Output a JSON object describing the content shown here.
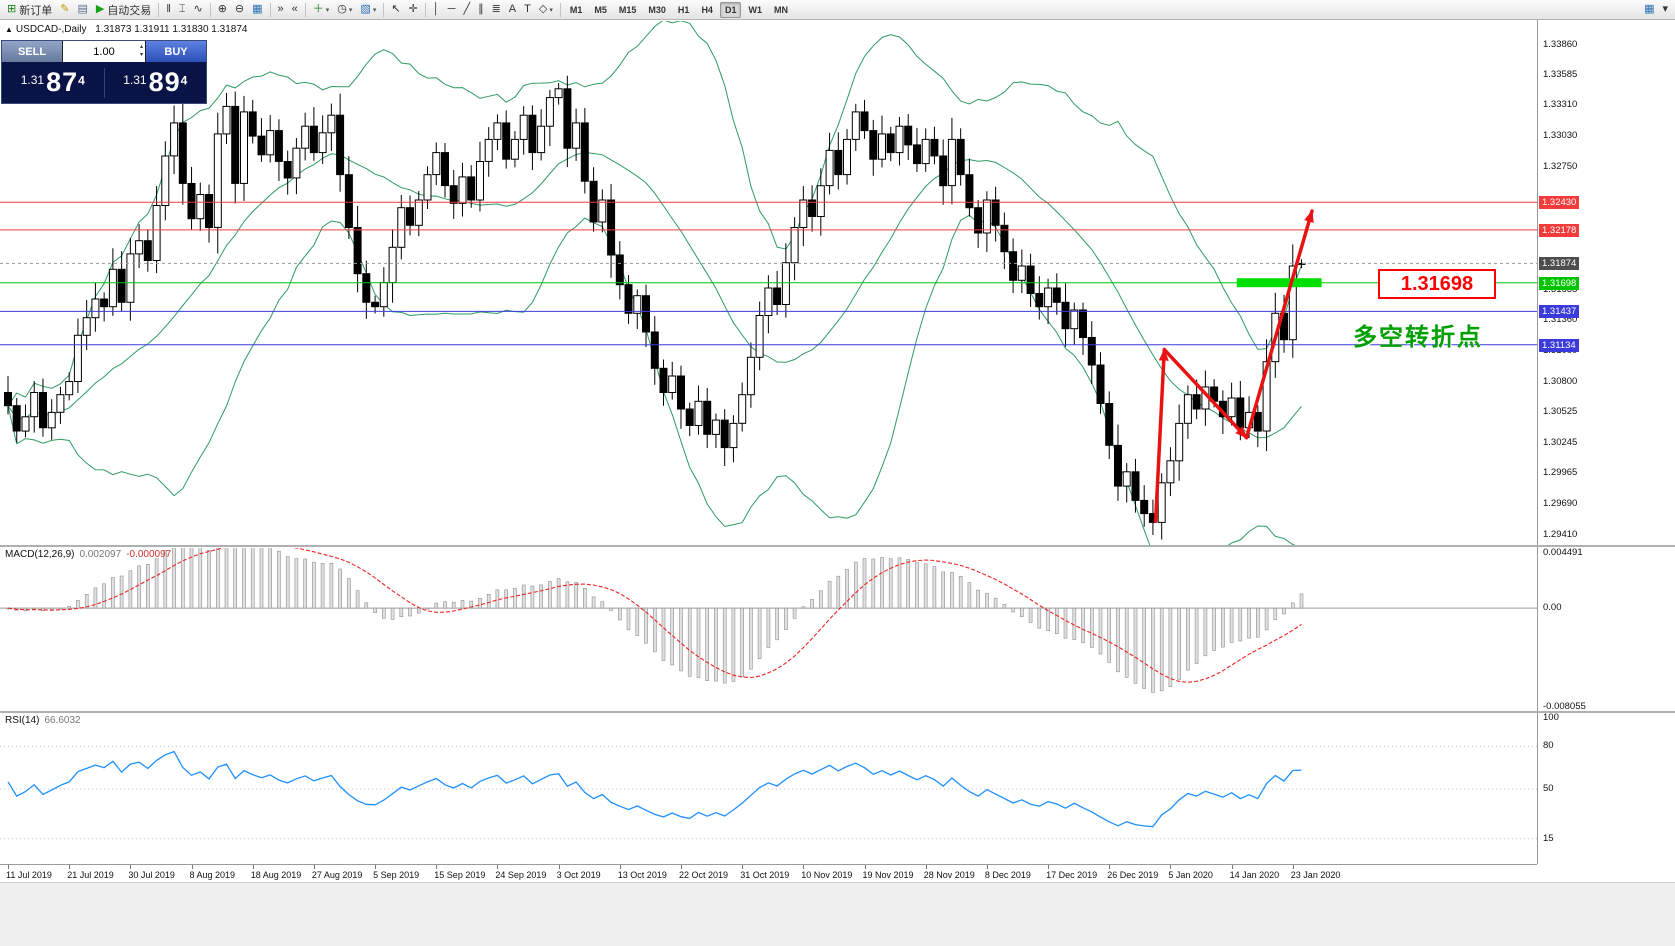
{
  "toolbar": {
    "groups": [
      {
        "name": "trade-group",
        "items": [
          {
            "name": "new-order-button",
            "glyph": "⊞",
            "color": "#1a7f1a",
            "label": "新订单"
          },
          {
            "name": "metaeditor-button",
            "glyph": "✎",
            "color": "#c79200"
          },
          {
            "name": "profiles-button",
            "glyph": "▤",
            "color": "#5a6f8a"
          },
          {
            "name": "autotrade-button",
            "glyph": "▶",
            "color": "#18a018",
            "label": "自动交易"
          }
        ]
      },
      {
        "name": "chart-type-group",
        "items": [
          {
            "name": "ohlc-bars-button",
            "glyph": "‖",
            "color": "#333"
          },
          {
            "name": "candlestick-chart-button",
            "glyph": "⌶",
            "color": "#333"
          },
          {
            "name": "line-chart-button",
            "glyph": "∿",
            "color": "#333"
          }
        ]
      },
      {
        "name": "zoom-group",
        "items": [
          {
            "name": "zoom-in-button",
            "glyph": "⊕",
            "color": "#333"
          },
          {
            "name": "zoom-out-button",
            "glyph": "⊖",
            "color": "#333"
          },
          {
            "name": "tile-windows-button",
            "glyph": "▦",
            "color": "#2a6fb0"
          }
        ]
      },
      {
        "name": "navigate-group",
        "items": [
          {
            "name": "auto-scroll-button",
            "glyph": "»",
            "color": "#333"
          },
          {
            "name": "chart-shift-button",
            "glyph": "«",
            "color": "#333"
          }
        ]
      },
      {
        "name": "insert-group",
        "items": [
          {
            "name": "indicators-button",
            "glyph": "＋",
            "color": "#1a7f1a",
            "caret": true
          },
          {
            "name": "periods-button",
            "glyph": "◷",
            "color": "#333",
            "caret": true
          },
          {
            "name": "templates-button",
            "glyph": "▧",
            "color": "#2a6fb0",
            "caret": true
          }
        ]
      },
      {
        "name": "pointer-group",
        "items": [
          {
            "name": "cursor-button",
            "glyph": "↖",
            "color": "#333"
          },
          {
            "name": "crosshair-button",
            "glyph": "✛",
            "color": "#333"
          }
        ]
      },
      {
        "name": "objects-group",
        "items": [
          {
            "name": "vertical-line-button",
            "glyph": "│",
            "color": "#333"
          },
          {
            "name": "horizontal-line-button",
            "glyph": "─",
            "color": "#333"
          },
          {
            "name": "trendline-button",
            "glyph": "╱",
            "color": "#333"
          },
          {
            "name": "channel-button",
            "glyph": "∥",
            "color": "#333"
          },
          {
            "name": "fibonacci-button",
            "glyph": "≣",
            "color": "#333"
          },
          {
            "name": "text-button",
            "glyph": "A",
            "color": "#333"
          },
          {
            "name": "text-label-button",
            "glyph": "T",
            "color": "#333"
          },
          {
            "name": "shapes-button",
            "glyph": "◇",
            "color": "#333",
            "caret": true
          }
        ]
      }
    ],
    "timeframes": [
      "M1",
      "M5",
      "M15",
      "M30",
      "H1",
      "H4",
      "D1",
      "W1",
      "MN"
    ],
    "active_timeframe": "D1",
    "right_buttons": [
      {
        "name": "new-chart-button",
        "glyph": "▦",
        "color": "#2a6fb0"
      },
      {
        "name": "chart-list-button",
        "glyph": "▾",
        "color": "#333"
      }
    ]
  },
  "chart_window": {
    "title": {
      "marker": "▲",
      "symbol": "USDCAD-,Daily",
      "ohlc": "1.31873 1.31911 1.31830 1.31874"
    },
    "trade_panel": {
      "sell_label": "SELL",
      "buy_label": "BUY",
      "volume": "1.00",
      "sell_price": {
        "small": "1.31",
        "big": "87",
        "sup": "4"
      },
      "buy_price": {
        "small": "1.31",
        "big": "89",
        "sup": "4"
      }
    },
    "annotations": {
      "level_box": "1.31698",
      "turning_point": "多空转折点"
    }
  },
  "chart_data": {
    "type": "candlestick",
    "symbol": "USDCAD",
    "timeframe": "Daily",
    "first_open": 1.307,
    "closes": [
      1.3058,
      1.3035,
      1.3048,
      1.307,
      1.3038,
      1.3052,
      1.3068,
      1.308,
      1.3122,
      1.3138,
      1.3155,
      1.3148,
      1.3182,
      1.3152,
      1.3196,
      1.3208,
      1.319,
      1.324,
      1.3285,
      1.3315,
      1.326,
      1.3228,
      1.325,
      1.322,
      1.3305,
      1.333,
      1.326,
      1.3325,
      1.3303,
      1.3286,
      1.3308,
      1.328,
      1.3265,
      1.3292,
      1.3312,
      1.3288,
      1.3306,
      1.3322,
      1.3268,
      1.322,
      1.3178,
      1.3152,
      1.3148,
      1.317,
      1.3202,
      1.3238,
      1.3222,
      1.3245,
      1.3268,
      1.3288,
      1.3258,
      1.3242,
      1.3266,
      1.3245,
      1.328,
      1.33,
      1.3315,
      1.3282,
      1.33,
      1.3322,
      1.3288,
      1.3312,
      1.3338,
      1.3346,
      1.3292,
      1.3315,
      1.3262,
      1.3225,
      1.3245,
      1.3195,
      1.3168,
      1.3142,
      1.3158,
      1.3125,
      1.3092,
      1.307,
      1.3085,
      1.3055,
      1.304,
      1.3062,
      1.3032,
      1.3045,
      1.302,
      1.3042,
      1.3068,
      1.3102,
      1.314,
      1.3165,
      1.315,
      1.3188,
      1.322,
      1.3245,
      1.323,
      1.3258,
      1.329,
      1.3268,
      1.33,
      1.3325,
      1.3308,
      1.3282,
      1.3305,
      1.3288,
      1.3312,
      1.3295,
      1.3278,
      1.33,
      1.3285,
      1.3258,
      1.33,
      1.3268,
      1.3238,
      1.3215,
      1.3245,
      1.3222,
      1.3198,
      1.3172,
      1.3185,
      1.316,
      1.3148,
      1.3165,
      1.3152,
      1.3128,
      1.3145,
      1.312,
      1.3095,
      1.306,
      1.3022,
      1.2985,
      1.2998,
      1.2972,
      1.296,
      1.2952,
      1.2988,
      1.3008,
      1.3042,
      1.3068,
      1.3055,
      1.3075,
      1.3062,
      1.3048,
      1.3065,
      1.3038,
      1.3052,
      1.3035,
      1.3098,
      1.3142,
      1.3118,
      1.3185,
      1.31874
    ],
    "last_ohlc": [
      1.31873,
      1.31911,
      1.3183,
      1.31874
    ],
    "x_labels": [
      "11 Jul 2019",
      "21 Jul 2019",
      "30 Jul 2019",
      "8 Aug 2019",
      "18 Aug 2019",
      "27 Aug 2019",
      "5 Sep 2019",
      "15 Sep 2019",
      "24 Sep 2019",
      "3 Oct 2019",
      "13 Oct 2019",
      "22 Oct 2019",
      "31 Oct 2019",
      "10 Nov 2019",
      "19 Nov 2019",
      "28 Nov 2019",
      "8 Dec 2019",
      "17 Dec 2019",
      "26 Dec 2019",
      "5 Jan 2020",
      "14 Jan 2020",
      "23 Jan 2020"
    ],
    "y_axis": {
      "min": 1.2936,
      "max": 1.3404,
      "ticks": [
        "1.33860",
        "1.33585",
        "1.33310",
        "1.33030",
        "1.32750",
        "1.31635",
        "1.31360",
        "1.31080",
        "1.30800",
        "1.30525",
        "1.30245",
        "1.29965",
        "1.29690",
        "1.29410"
      ]
    },
    "current_price": 1.31874,
    "current_price_label": "1.31874",
    "hlines": [
      {
        "price": 1.3243,
        "label": "1.32430",
        "color": "#f33b3b"
      },
      {
        "price": 1.32178,
        "label": "1.32178",
        "color": "#f33b3b"
      },
      {
        "price": 1.31698,
        "label": "1.31698",
        "color": "#00c400"
      },
      {
        "price": 1.31437,
        "label": "1.31437",
        "color": "#3b3bdd"
      },
      {
        "price": 1.31134,
        "label": "1.31134",
        "color": "#3b3bdd"
      }
    ],
    "highlight_segment": {
      "from": 140.6,
      "to": 150.3,
      "price": 1.31698,
      "color": "#00e000"
    },
    "trend_arrows": {
      "color": "#e81212",
      "points": [
        [
          131.3,
          1.2953
        ],
        [
          132.3,
          1.3109
        ],
        [
          141.7,
          1.3029
        ],
        [
          149.2,
          1.3235
        ]
      ]
    },
    "bollinger": {
      "period": 20,
      "deviation": 2,
      "color": "#2e9b62"
    },
    "indicators": {
      "macd": {
        "label": "MACD(12,26,9)",
        "main_value": "0.002097",
        "signal_value": "-0.000097",
        "params": [
          12,
          26,
          9
        ],
        "scale_ticks": [
          "0.004491",
          "0.00",
          "-0.008055"
        ],
        "range": {
          "min": -0.008055,
          "max": 0.004491
        },
        "histogram_color": "#e0e0e0",
        "signal_color": "#ee2222"
      },
      "rsi": {
        "label": "RSI(14)",
        "value": "66.6032",
        "period": 14,
        "scale_ticks": [
          {
            "v": 100,
            "t": "100"
          },
          {
            "v": 80,
            "t": "80"
          },
          {
            "v": 50,
            "t": "50"
          },
          {
            "v": 15,
            "t": "15"
          }
        ],
        "levels": [
          80,
          50,
          15
        ],
        "range": {
          "min": 0,
          "max": 100
        },
        "color": "#1e90ff"
      }
    }
  }
}
